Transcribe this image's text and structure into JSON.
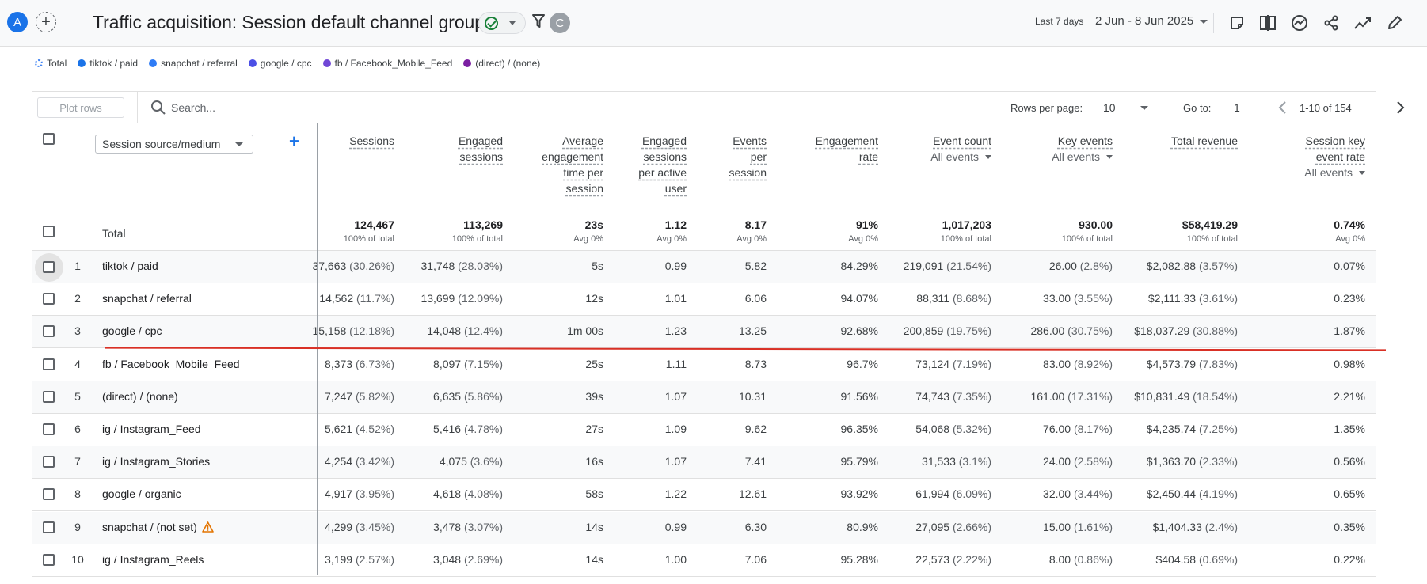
{
  "header": {
    "avatar_a": "A",
    "title": "Traffic acquisition: Session default channel group",
    "avatar_c": "C",
    "date_label": "Last 7 days",
    "date_range": "2 Jun - 8 Jun 2025",
    "icons": [
      "add-comparison-icon",
      "status-check-icon",
      "filter-icon",
      "share-notes-icon",
      "compare-icon",
      "insights-icon",
      "share-icon",
      "trend-icon",
      "edit-icon"
    ]
  },
  "legend": [
    {
      "label": "Total",
      "color": "#4285f4"
    },
    {
      "label": "tiktok / paid",
      "color": "#1a73e8"
    },
    {
      "label": "snapchat / referral",
      "color": "#2e7cf6"
    },
    {
      "label": "google / cpc",
      "color": "#4b4fe6"
    },
    {
      "label": "fb / Facebook_Mobile_Feed",
      "color": "#7047d6"
    },
    {
      "label": "(direct) / (none)",
      "color": "#7b1fa2"
    }
  ],
  "toolbar": {
    "plot_rows": "Plot rows",
    "search_placeholder": "Search...",
    "rows_per_page_label": "Rows per page:",
    "rows_per_page": "10",
    "goto_label": "Go to:",
    "goto_value": "1",
    "page_range": "1-10 of 154"
  },
  "table": {
    "dimension": "Session source/medium",
    "columns": [
      {
        "lines": [
          "Sessions"
        ],
        "sub": ""
      },
      {
        "lines": [
          "Engaged",
          "sessions"
        ],
        "sub": ""
      },
      {
        "lines": [
          "Average",
          "engagement",
          "time per",
          "session"
        ],
        "sub": ""
      },
      {
        "lines": [
          "Engaged",
          "sessions",
          "per active",
          "user"
        ],
        "sub": ""
      },
      {
        "lines": [
          "Events",
          "per",
          "session"
        ],
        "sub": ""
      },
      {
        "lines": [
          "Engagement",
          "rate"
        ],
        "sub": ""
      },
      {
        "lines": [
          "Event count"
        ],
        "sub": "All events"
      },
      {
        "lines": [
          "Key events"
        ],
        "sub": "All events"
      },
      {
        "lines": [
          "Total revenue"
        ],
        "sub": ""
      },
      {
        "lines": [
          "Session key",
          "event rate"
        ],
        "sub": "All events"
      }
    ],
    "total": {
      "label": "Total",
      "values": [
        {
          "v": "124,467",
          "s": "100% of total"
        },
        {
          "v": "113,269",
          "s": "100% of total"
        },
        {
          "v": "23s",
          "s": "Avg 0%"
        },
        {
          "v": "1.12",
          "s": "Avg 0%"
        },
        {
          "v": "8.17",
          "s": "Avg 0%"
        },
        {
          "v": "91%",
          "s": "Avg 0%"
        },
        {
          "v": "1,017,203",
          "s": "100% of total"
        },
        {
          "v": "930.00",
          "s": "100% of total"
        },
        {
          "v": "$58,419.29",
          "s": "100% of total"
        },
        {
          "v": "0.74%",
          "s": "Avg 0%"
        }
      ]
    },
    "rows": [
      {
        "idx": "1",
        "dim": "tiktok / paid",
        "warn": false,
        "cells": [
          [
            "37,663",
            "(30.26%)"
          ],
          [
            "31,748",
            "(28.03%)"
          ],
          [
            "5s",
            ""
          ],
          [
            "0.99",
            ""
          ],
          [
            "5.82",
            ""
          ],
          [
            "84.29%",
            ""
          ],
          [
            "219,091",
            "(21.54%)"
          ],
          [
            "26.00",
            "(2.8%)"
          ],
          [
            "$2,082.88",
            "(3.57%)"
          ],
          [
            "0.07%",
            ""
          ]
        ]
      },
      {
        "idx": "2",
        "dim": "snapchat / referral",
        "warn": false,
        "cells": [
          [
            "14,562",
            "(11.7%)"
          ],
          [
            "13,699",
            "(12.09%)"
          ],
          [
            "12s",
            ""
          ],
          [
            "1.01",
            ""
          ],
          [
            "6.06",
            ""
          ],
          [
            "94.07%",
            ""
          ],
          [
            "88,311",
            "(8.68%)"
          ],
          [
            "33.00",
            "(3.55%)"
          ],
          [
            "$2,111.33",
            "(3.61%)"
          ],
          [
            "0.23%",
            ""
          ]
        ]
      },
      {
        "idx": "3",
        "dim": "google / cpc",
        "warn": false,
        "cells": [
          [
            "15,158",
            "(12.18%)"
          ],
          [
            "14,048",
            "(12.4%)"
          ],
          [
            "1m 00s",
            ""
          ],
          [
            "1.23",
            ""
          ],
          [
            "13.25",
            ""
          ],
          [
            "92.68%",
            ""
          ],
          [
            "200,859",
            "(19.75%)"
          ],
          [
            "286.00",
            "(30.75%)"
          ],
          [
            "$18,037.29",
            "(30.88%)"
          ],
          [
            "1.87%",
            ""
          ]
        ]
      },
      {
        "idx": "4",
        "dim": "fb / Facebook_Mobile_Feed",
        "warn": false,
        "cells": [
          [
            "8,373",
            "(6.73%)"
          ],
          [
            "8,097",
            "(7.15%)"
          ],
          [
            "25s",
            ""
          ],
          [
            "1.11",
            ""
          ],
          [
            "8.73",
            ""
          ],
          [
            "96.7%",
            ""
          ],
          [
            "73,124",
            "(7.19%)"
          ],
          [
            "83.00",
            "(8.92%)"
          ],
          [
            "$4,573.79",
            "(7.83%)"
          ],
          [
            "0.98%",
            ""
          ]
        ]
      },
      {
        "idx": "5",
        "dim": "(direct) / (none)",
        "warn": false,
        "cells": [
          [
            "7,247",
            "(5.82%)"
          ],
          [
            "6,635",
            "(5.86%)"
          ],
          [
            "39s",
            ""
          ],
          [
            "1.07",
            ""
          ],
          [
            "10.31",
            ""
          ],
          [
            "91.56%",
            ""
          ],
          [
            "74,743",
            "(7.35%)"
          ],
          [
            "161.00",
            "(17.31%)"
          ],
          [
            "$10,831.49",
            "(18.54%)"
          ],
          [
            "2.21%",
            ""
          ]
        ]
      },
      {
        "idx": "6",
        "dim": "ig / Instagram_Feed",
        "warn": false,
        "cells": [
          [
            "5,621",
            "(4.52%)"
          ],
          [
            "5,416",
            "(4.78%)"
          ],
          [
            "27s",
            ""
          ],
          [
            "1.09",
            ""
          ],
          [
            "9.62",
            ""
          ],
          [
            "96.35%",
            ""
          ],
          [
            "54,068",
            "(5.32%)"
          ],
          [
            "76.00",
            "(8.17%)"
          ],
          [
            "$4,235.74",
            "(7.25%)"
          ],
          [
            "1.35%",
            ""
          ]
        ]
      },
      {
        "idx": "7",
        "dim": "ig / Instagram_Stories",
        "warn": false,
        "cells": [
          [
            "4,254",
            "(3.42%)"
          ],
          [
            "4,075",
            "(3.6%)"
          ],
          [
            "16s",
            ""
          ],
          [
            "1.07",
            ""
          ],
          [
            "7.41",
            ""
          ],
          [
            "95.79%",
            ""
          ],
          [
            "31,533",
            "(3.1%)"
          ],
          [
            "24.00",
            "(2.58%)"
          ],
          [
            "$1,363.70",
            "(2.33%)"
          ],
          [
            "0.56%",
            ""
          ]
        ]
      },
      {
        "idx": "8",
        "dim": "google / organic",
        "warn": false,
        "cells": [
          [
            "4,917",
            "(3.95%)"
          ],
          [
            "4,618",
            "(4.08%)"
          ],
          [
            "58s",
            ""
          ],
          [
            "1.22",
            ""
          ],
          [
            "12.61",
            ""
          ],
          [
            "93.92%",
            ""
          ],
          [
            "61,994",
            "(6.09%)"
          ],
          [
            "32.00",
            "(3.44%)"
          ],
          [
            "$2,450.44",
            "(4.19%)"
          ],
          [
            "0.65%",
            ""
          ]
        ]
      },
      {
        "idx": "9",
        "dim": "snapchat / (not set)",
        "warn": true,
        "cells": [
          [
            "4,299",
            "(3.45%)"
          ],
          [
            "3,478",
            "(3.07%)"
          ],
          [
            "14s",
            ""
          ],
          [
            "0.99",
            ""
          ],
          [
            "6.30",
            ""
          ],
          [
            "80.9%",
            ""
          ],
          [
            "27,095",
            "(2.66%)"
          ],
          [
            "15.00",
            "(1.61%)"
          ],
          [
            "$1,404.33",
            "(2.4%)"
          ],
          [
            "0.35%",
            ""
          ]
        ]
      },
      {
        "idx": "10",
        "dim": "ig / Instagram_Reels",
        "warn": false,
        "cells": [
          [
            "3,199",
            "(2.57%)"
          ],
          [
            "3,048",
            "(2.69%)"
          ],
          [
            "14s",
            ""
          ],
          [
            "1.00",
            ""
          ],
          [
            "7.06",
            ""
          ],
          [
            "95.28%",
            ""
          ],
          [
            "22,573",
            "(2.22%)"
          ],
          [
            "8.00",
            "(0.86%)"
          ],
          [
            "$404.58",
            "(0.69%)"
          ],
          [
            "0.22%",
            ""
          ]
        ]
      }
    ]
  }
}
